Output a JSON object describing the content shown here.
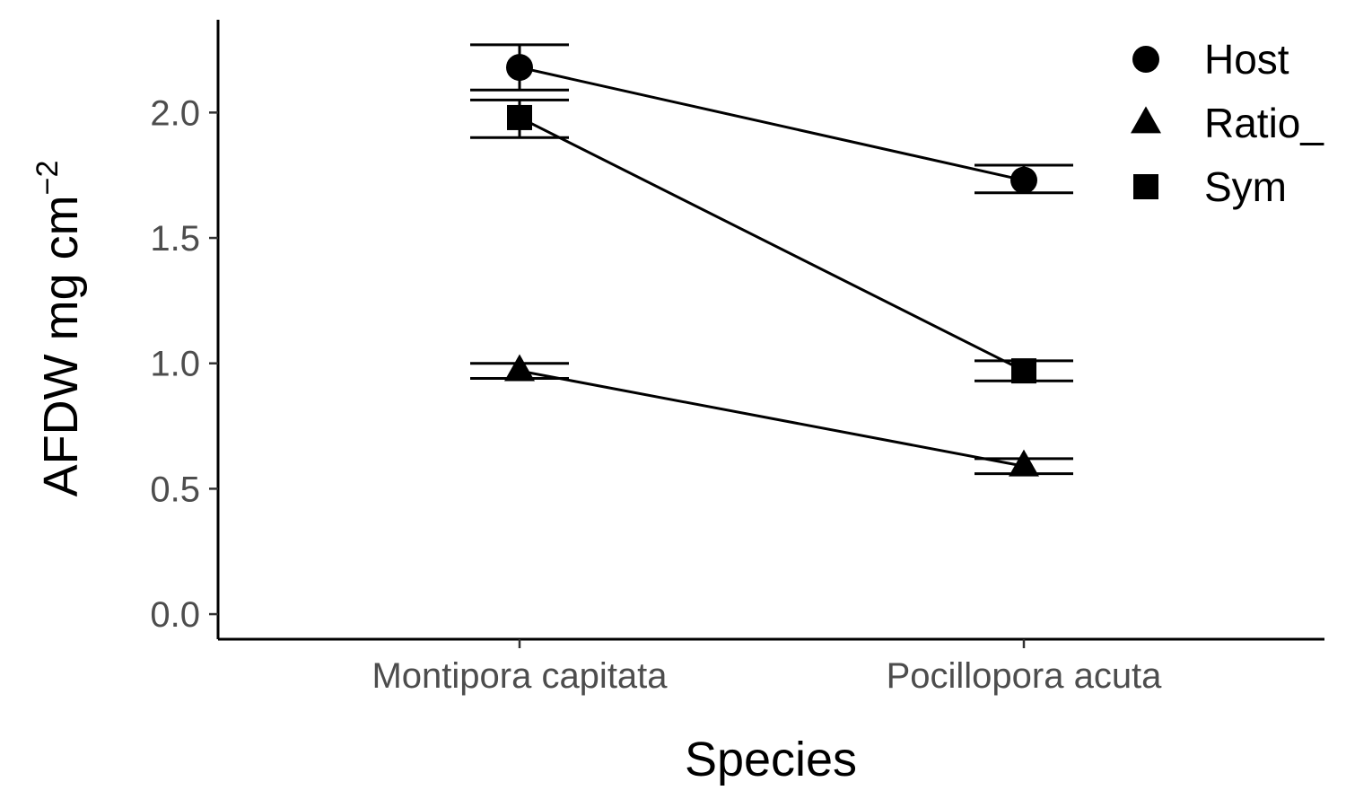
{
  "chart_data": {
    "type": "line",
    "title": "",
    "xlabel": "Species",
    "ylabel": "AFDW mg cm",
    "ylabel_superscript": "−2",
    "categories": [
      "Montipora capitata",
      "Pocillopora acuta"
    ],
    "ylim": [
      -0.1,
      2.37
    ],
    "yticks": [
      0.0,
      0.5,
      1.0,
      1.5,
      2.0
    ],
    "ytick_labels": [
      "0.0",
      "0.5",
      "1.0",
      "1.5",
      "2.0"
    ],
    "grid": false,
    "legend_position": "top-right",
    "series": [
      {
        "name": "Host",
        "marker": "circle",
        "values": [
          2.18,
          1.73
        ],
        "lower": [
          2.09,
          1.68
        ],
        "upper": [
          2.27,
          1.79
        ]
      },
      {
        "name": "Ratio_",
        "marker": "triangle",
        "values": [
          0.97,
          0.59
        ],
        "lower": [
          0.94,
          0.56
        ],
        "upper": [
          1.0,
          0.62
        ]
      },
      {
        "name": "Sym",
        "marker": "square",
        "values": [
          1.98,
          0.97
        ],
        "lower": [
          1.9,
          0.93
        ],
        "upper": [
          2.05,
          1.01
        ]
      }
    ],
    "colors": {
      "ink": "#000000",
      "tick_text": "#4d4d4d"
    }
  }
}
